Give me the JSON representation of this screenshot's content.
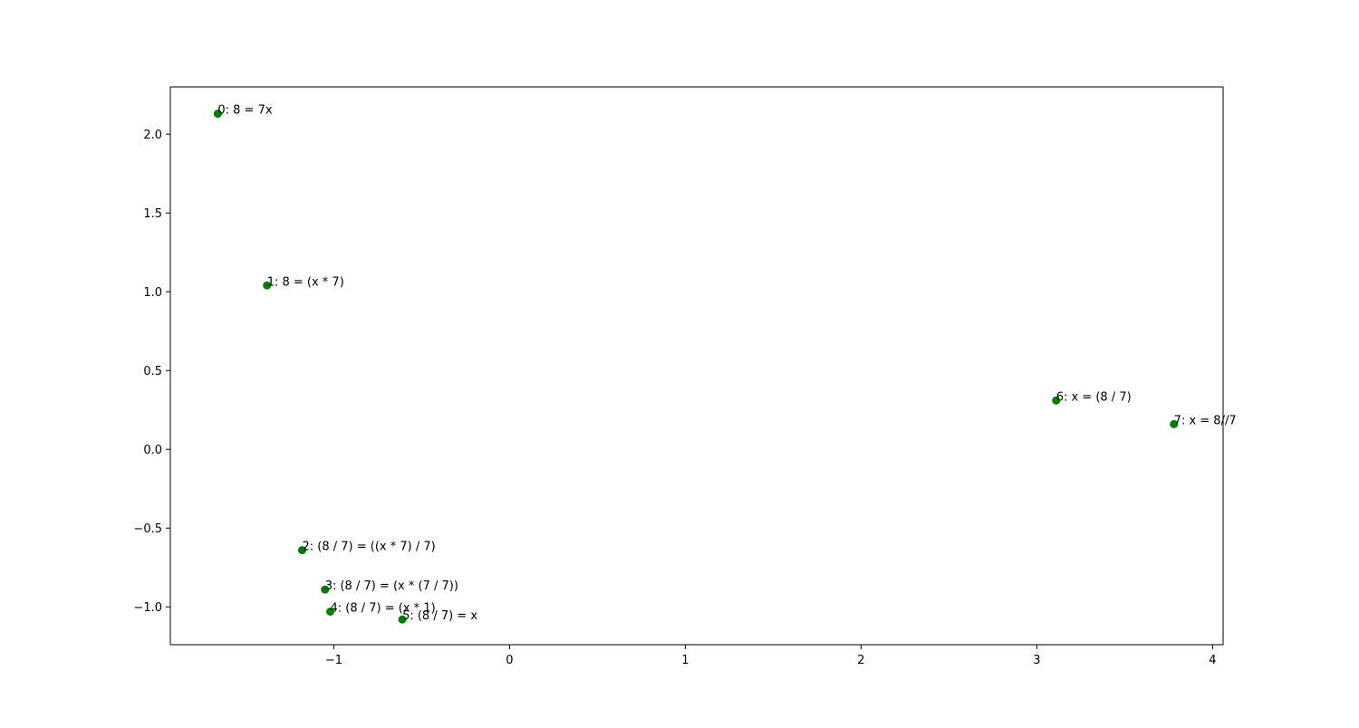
{
  "chart_data": {
    "type": "scatter",
    "title": "",
    "xlabel": "",
    "ylabel": "",
    "xlim": [
      -1.93,
      4.06
    ],
    "ylim": [
      -1.24,
      2.3
    ],
    "grid": false,
    "marker_color": "#008000",
    "x_ticks": [
      {
        "value": -1,
        "label": "−1"
      },
      {
        "value": 0,
        "label": "0"
      },
      {
        "value": 1,
        "label": "1"
      },
      {
        "value": 2,
        "label": "2"
      },
      {
        "value": 3,
        "label": "3"
      },
      {
        "value": 4,
        "label": "4"
      }
    ],
    "y_ticks": [
      {
        "value": -1.0,
        "label": "−1.0"
      },
      {
        "value": -0.5,
        "label": "−0.5"
      },
      {
        "value": 0.0,
        "label": "0.0"
      },
      {
        "value": 0.5,
        "label": "0.5"
      },
      {
        "value": 1.0,
        "label": "1.0"
      },
      {
        "value": 1.5,
        "label": "1.5"
      },
      {
        "value": 2.0,
        "label": "2.0"
      }
    ],
    "points": [
      {
        "x": -1.66,
        "y": 2.13,
        "label": "0: 8 = 7x"
      },
      {
        "x": -1.38,
        "y": 1.04,
        "label": "1: 8 = (x * 7)"
      },
      {
        "x": -1.18,
        "y": -0.64,
        "label": "2: (8 / 7) = ((x * 7) / 7)"
      },
      {
        "x": -1.05,
        "y": -0.89,
        "label": "3: (8 / 7) = (x * (7 / 7))"
      },
      {
        "x": -1.02,
        "y": -1.03,
        "label": "4: (8 / 7) = (x * 1)"
      },
      {
        "x": -0.61,
        "y": -1.08,
        "label": "5: (8 / 7) = x"
      },
      {
        "x": 3.11,
        "y": 0.31,
        "label": "6: x = (8 / 7)"
      },
      {
        "x": 3.78,
        "y": 0.16,
        "label": "7: x = 8//7"
      }
    ]
  }
}
